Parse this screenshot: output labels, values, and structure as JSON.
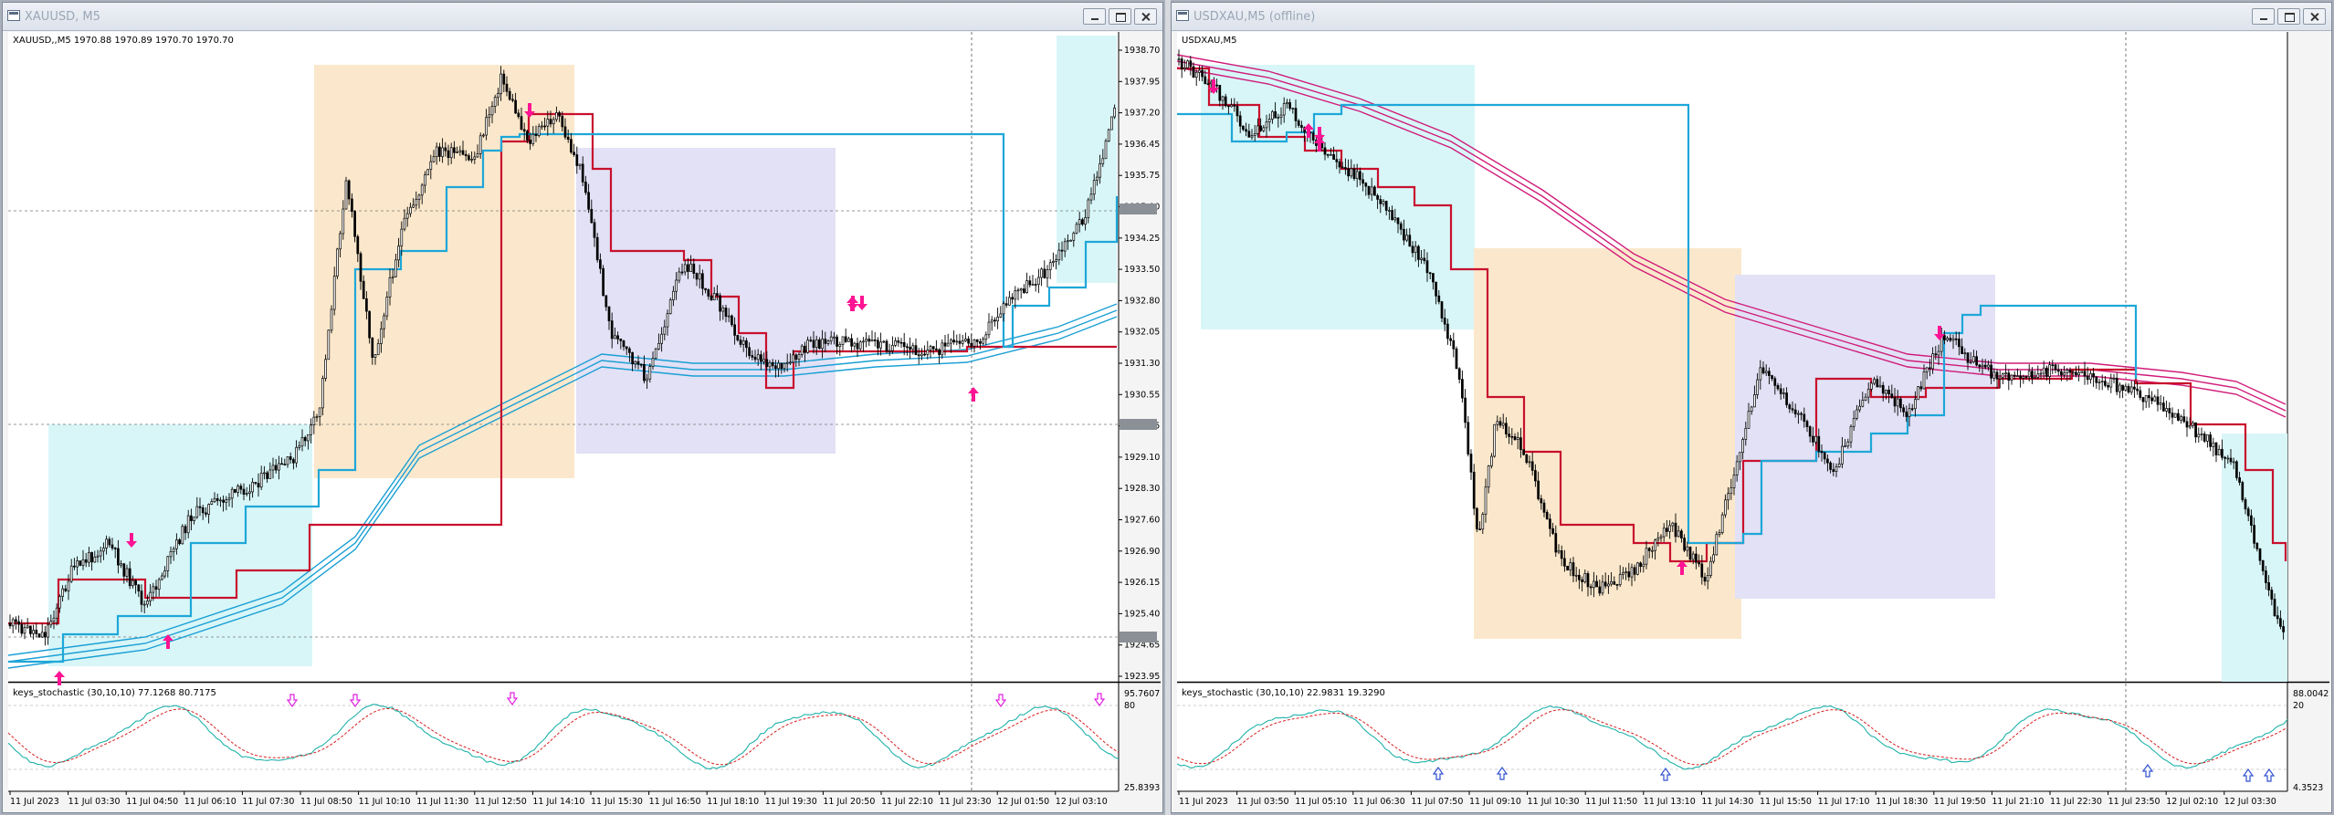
{
  "left": {
    "title": "XAUUSD, M5",
    "symbol_line": "XAUUSD,,M5  1970.88 1970.89 1970.70 1970.70",
    "indicator_label": "keys_stochastic (30,10,10) 77.1268 80.7175",
    "price_labels": [
      "1938.70",
      "1937.95",
      "1937.20",
      "1936.45",
      "1935.75",
      "1935.00",
      "1934.25",
      "1933.50",
      "1932.80",
      "1932.05",
      "1931.30",
      "1930.55",
      "1929.85",
      "1929.10",
      "1928.30",
      "1927.60",
      "1926.90",
      "1926.15",
      "1925.40",
      "1924.65",
      "1923.95"
    ],
    "osc_labels": [
      "95.7607",
      "80",
      "25.8393"
    ],
    "time_labels": [
      "11 Jul 2023",
      "11 Jul 03:30",
      "11 Jul 04:50",
      "11 Jul 06:10",
      "11 Jul 07:30",
      "11 Jul 08:50",
      "11 Jul 10:10",
      "11 Jul 11:30",
      "11 Jul 12:50",
      "11 Jul 14:10",
      "11 Jul 15:30",
      "11 Jul 16:50",
      "11 Jul 18:10",
      "11 Jul 19:30",
      "11 Jul 20:50",
      "11 Jul 22:10",
      "11 Jul 23:30",
      "12 Jul 01:50",
      "12 Jul 03:10"
    ]
  },
  "right": {
    "title": "USDXAU,M5 (offline)",
    "symbol_line": "USDXAU,M5",
    "indicator_label": "keys_stochastic (30,10,10) 22.9831 19.3290",
    "osc_labels": [
      "88.0042",
      "20",
      "4.3523"
    ],
    "time_labels": [
      "11 Jul 2023",
      "11 Jul 03:50",
      "11 Jul 05:10",
      "11 Jul 06:30",
      "11 Jul 07:50",
      "11 Jul 09:10",
      "11 Jul 10:30",
      "11 Jul 11:50",
      "11 Jul 13:10",
      "11 Jul 14:30",
      "11 Jul 15:50",
      "11 Jul 17:10",
      "11 Jul 18:30",
      "11 Jul 19:50",
      "11 Jul 21:10",
      "11 Jul 22:30",
      "11 Jul 23:50",
      "12 Jul 02:10",
      "12 Jul 03:30"
    ]
  },
  "colors": {
    "chart_bg": "#ffffff",
    "candle": "#000000",
    "trail_red": "#c8102e",
    "trail_blue": "#1ea7d8",
    "ma_blue": "#1a9fd4",
    "ma_magenta": "#d01c7a",
    "zone_cyan": "#d8f6f8",
    "zone_orange": "#fbe8cc",
    "zone_lavender": "#e2e1f5",
    "arrow_pink": "#ff1493",
    "stoch_main": "#20b2aa",
    "stoch_signal": "#d62020"
  },
  "icons": [
    "window-icon",
    "minimize-icon",
    "maximize-icon",
    "close-icon",
    "arrow-up-icon",
    "arrow-down-icon"
  ]
}
